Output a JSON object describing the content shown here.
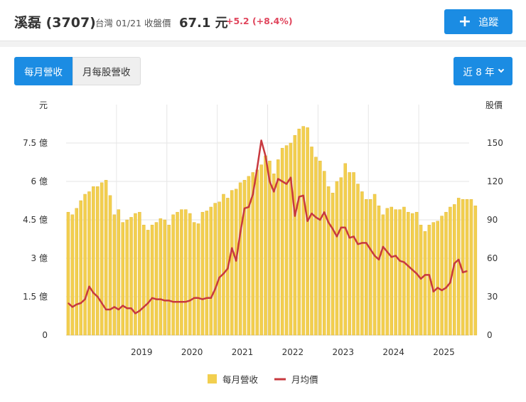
{
  "header": {
    "title": "溪磊 (3707)",
    "meta": "台灣 01/21 收盤價",
    "price": "67.1 元",
    "change": "+5.2 (+8.4%)",
    "track_label": "追蹤",
    "track_icon": "plus-icon"
  },
  "tabs": [
    {
      "label": "每月營收",
      "active": true
    },
    {
      "label": "月每股營收",
      "active": false
    }
  ],
  "range_label": "近 8 年",
  "colors": {
    "accent": "#1b8ce3",
    "bar": "#f2cf4f",
    "line": "#c8393f",
    "up": "#e0455c"
  },
  "chart_data": {
    "type": "bar",
    "left_unit": "元",
    "right_unit": "股價",
    "left_ticks": [
      "0",
      "1.5 億",
      "3 億",
      "4.5 億",
      "6 億",
      "7.5 億"
    ],
    "left_tick_values": [
      0,
      1.5,
      3,
      4.5,
      6,
      7.5
    ],
    "right_ticks": [
      "0",
      "30",
      "60",
      "90",
      "120",
      "150"
    ],
    "right_tick_values": [
      0,
      30,
      60,
      90,
      120,
      150
    ],
    "ylim_left": [
      0,
      9
    ],
    "ylim_right": [
      0,
      180
    ],
    "x_tick_labels": [
      "2019",
      "2020",
      "2021",
      "2022",
      "2023",
      "2024",
      "2025"
    ],
    "x_range": [
      2018.0,
      2026.0
    ],
    "grid": true,
    "legend_position": "bottom-center",
    "series": [
      {
        "name": "每月營收",
        "kind": "bar",
        "axis": "left",
        "x_start": 2018.0,
        "x_step": 0.08333,
        "values": [
          4.8,
          4.7,
          4.95,
          5.25,
          5.5,
          5.6,
          5.8,
          5.8,
          5.95,
          6.05,
          5.45,
          4.7,
          4.9,
          4.4,
          4.5,
          4.6,
          4.75,
          4.8,
          4.3,
          4.1,
          4.3,
          4.4,
          4.55,
          4.5,
          4.3,
          4.7,
          4.8,
          4.9,
          4.9,
          4.75,
          4.4,
          4.35,
          4.8,
          4.85,
          5.0,
          5.15,
          5.2,
          5.5,
          5.35,
          5.65,
          5.7,
          5.95,
          6.05,
          6.2,
          6.35,
          6.45,
          6.65,
          7.0,
          6.8,
          6.3,
          6.85,
          7.3,
          7.4,
          7.5,
          7.8,
          8.05,
          8.15,
          8.1,
          7.35,
          6.95,
          6.8,
          6.4,
          5.8,
          5.55,
          6.0,
          6.15,
          6.7,
          6.35,
          6.35,
          5.9,
          5.6,
          5.3,
          5.3,
          5.5,
          5.05,
          4.7,
          4.95,
          5.0,
          4.9,
          4.9,
          5.0,
          4.8,
          4.75,
          4.8,
          4.3,
          4.05,
          4.3,
          4.4,
          4.45,
          4.65,
          4.8,
          5.0,
          5.1,
          5.35,
          5.3,
          5.3,
          5.3,
          5.05
        ]
      },
      {
        "name": "月均價",
        "kind": "line",
        "axis": "right",
        "x_start": 2018.0,
        "x_step": 0.08333,
        "values": [
          25,
          22,
          24,
          25,
          28,
          38,
          33,
          30,
          25,
          20,
          20,
          22,
          20,
          23,
          21,
          21,
          17,
          19,
          22,
          25,
          29,
          28,
          28,
          27,
          27,
          26,
          26,
          26,
          26,
          27,
          29,
          29,
          28,
          29,
          29,
          36,
          45,
          48,
          52,
          68,
          58,
          80,
          99,
          100,
          110,
          130,
          152,
          140,
          120,
          112,
          122,
          120,
          118,
          123,
          93,
          108,
          109,
          89,
          95,
          92,
          90,
          96,
          88,
          83,
          77,
          84,
          84,
          76,
          77,
          71,
          72,
          72,
          67,
          62,
          59,
          69,
          65,
          61,
          62,
          58,
          57,
          54,
          51,
          48,
          44,
          47,
          47,
          34,
          37,
          35,
          37,
          41,
          56,
          59,
          49,
          50
        ]
      }
    ]
  }
}
